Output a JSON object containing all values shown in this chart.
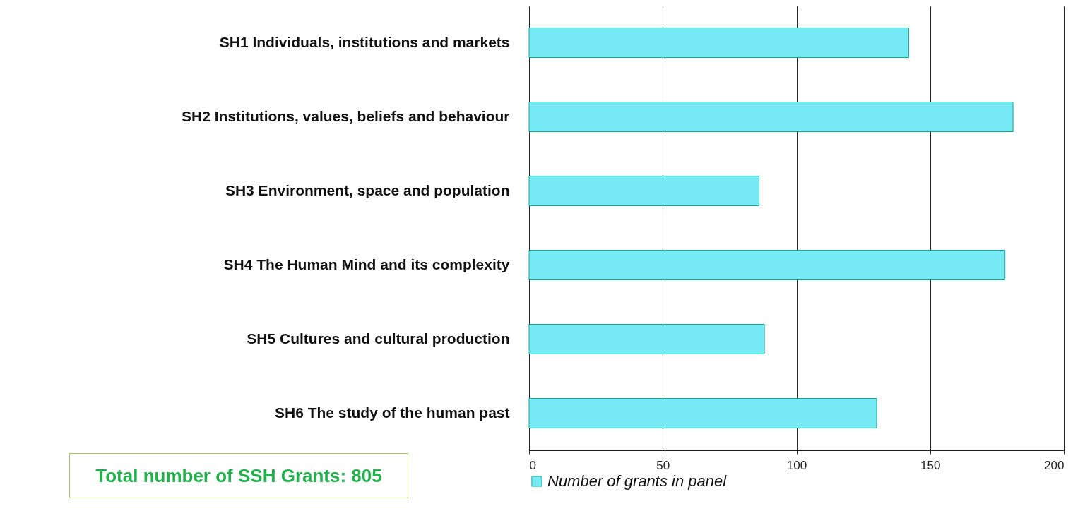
{
  "chart_data": {
    "type": "bar",
    "orientation": "horizontal",
    "categories": [
      "SH1 Individuals, institutions and markets",
      "SH2 Institutions, values, beliefs and behaviour",
      "SH3 Environment, space and population",
      "SH4 The Human Mind and its complexity",
      "SH5 Cultures and cultural production",
      "SH6 The study of the human past"
    ],
    "series": [
      {
        "name": "Number of grants in panel",
        "color": "#75eaf5",
        "values": [
          142,
          181,
          86,
          178,
          88,
          130
        ]
      }
    ],
    "xlim": [
      0,
      200
    ],
    "xticks": [
      0,
      50,
      100,
      150,
      200
    ],
    "grid": "x",
    "legend": "bottom",
    "annotations": [
      "Total number of SSH Grants: 805"
    ]
  }
}
